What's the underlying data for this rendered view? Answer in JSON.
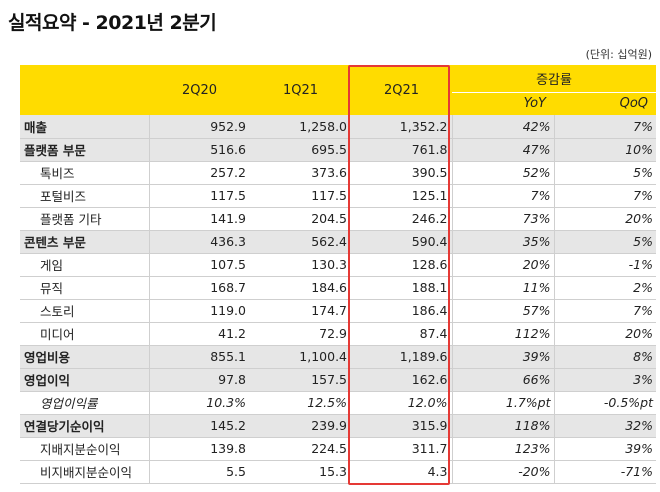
{
  "title": "실적요약 - 2021년 2분기",
  "unit": "(단위: 십억원)",
  "header": {
    "periods": [
      "2Q20",
      "1Q21",
      "2Q21"
    ],
    "growth_label": "증감률",
    "growth_cols": [
      "YoY",
      "QoQ"
    ]
  },
  "rows": [
    {
      "label": "매출",
      "type": "major",
      "values": [
        "952.9",
        "1,258.0",
        "1,352.2"
      ],
      "yoy": "42%",
      "qoq": "7%"
    },
    {
      "label": "플랫폼 부문",
      "type": "major",
      "values": [
        "516.6",
        "695.5",
        "761.8"
      ],
      "yoy": "47%",
      "qoq": "10%"
    },
    {
      "label": "톡비즈",
      "type": "sub",
      "values": [
        "257.2",
        "373.6",
        "390.5"
      ],
      "yoy": "52%",
      "qoq": "5%"
    },
    {
      "label": "포털비즈",
      "type": "sub",
      "values": [
        "117.5",
        "117.5",
        "125.1"
      ],
      "yoy": "7%",
      "qoq": "7%"
    },
    {
      "label": "플랫폼 기타",
      "type": "sub",
      "values": [
        "141.9",
        "204.5",
        "246.2"
      ],
      "yoy": "73%",
      "qoq": "20%"
    },
    {
      "label": "콘텐츠 부문",
      "type": "major",
      "values": [
        "436.3",
        "562.4",
        "590.4"
      ],
      "yoy": "35%",
      "qoq": "5%"
    },
    {
      "label": "게임",
      "type": "sub",
      "values": [
        "107.5",
        "130.3",
        "128.6"
      ],
      "yoy": "20%",
      "qoq": "-1%"
    },
    {
      "label": "뮤직",
      "type": "sub",
      "values": [
        "168.7",
        "184.6",
        "188.1"
      ],
      "yoy": "11%",
      "qoq": "2%"
    },
    {
      "label": "스토리",
      "type": "sub",
      "values": [
        "119.0",
        "174.7",
        "186.4"
      ],
      "yoy": "57%",
      "qoq": "7%"
    },
    {
      "label": "미디어",
      "type": "sub",
      "values": [
        "41.2",
        "72.9",
        "87.4"
      ],
      "yoy": "112%",
      "qoq": "20%"
    },
    {
      "label": "영업비용",
      "type": "major",
      "values": [
        "855.1",
        "1,100.4",
        "1,189.6"
      ],
      "yoy": "39%",
      "qoq": "8%"
    },
    {
      "label": "영업이익",
      "type": "major",
      "values": [
        "97.8",
        "157.5",
        "162.6"
      ],
      "yoy": "66%",
      "qoq": "3%"
    },
    {
      "label": "영업이익률",
      "type": "ratio",
      "values": [
        "10.3%",
        "12.5%",
        "12.0%"
      ],
      "yoy": "1.7%pt",
      "qoq": "-0.5%pt"
    },
    {
      "label": "연결당기순이익",
      "type": "major",
      "values": [
        "145.2",
        "239.9",
        "315.9"
      ],
      "yoy": "118%",
      "qoq": "32%"
    },
    {
      "label": "지배지분순이익",
      "type": "sub",
      "values": [
        "139.8",
        "224.5",
        "311.7"
      ],
      "yoy": "123%",
      "qoq": "39%"
    },
    {
      "label": "비지배지분순이익",
      "type": "sub",
      "values": [
        "5.5",
        "15.3",
        "4.3"
      ],
      "yoy": "-20%",
      "qoq": "-71%"
    }
  ],
  "colors": {
    "header_bg": "#ffdc00",
    "major_bg": "#e6e6e6",
    "highlight": "#e53935"
  }
}
